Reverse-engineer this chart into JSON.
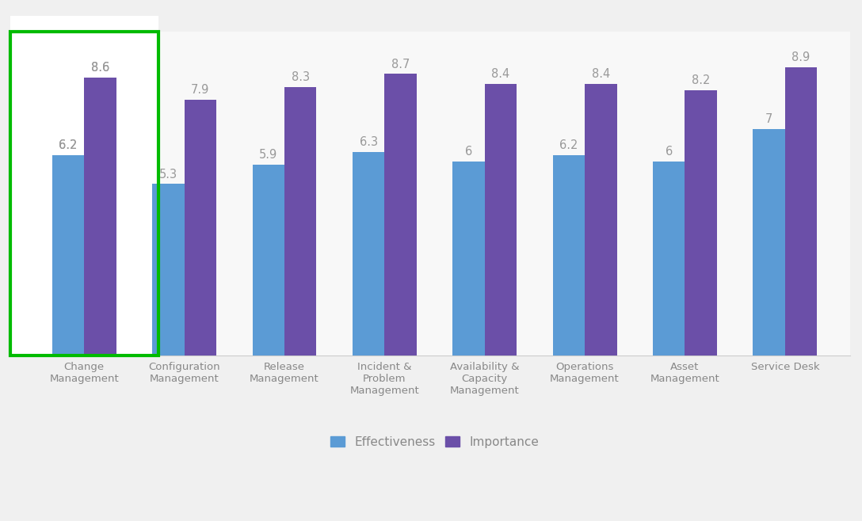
{
  "categories": [
    "Change\nManagement",
    "Configuration\nManagement",
    "Release\nManagement",
    "Incident &\nProblem\nManagement",
    "Availability &\nCapacity\nManagement",
    "Operations\nManagement",
    "Asset\nManagement",
    "Service Desk"
  ],
  "effectiveness": [
    6.2,
    5.3,
    5.9,
    6.3,
    6.0,
    6.2,
    6.0,
    7.0
  ],
  "importance": [
    8.6,
    7.9,
    8.3,
    8.7,
    8.4,
    8.4,
    8.2,
    8.9
  ],
  "effectiveness_color": "#5B9BD5",
  "importance_color": "#6B4FA8",
  "highlighted_index": 0,
  "highlight_color": "#00BB00",
  "background_color": "#F0F0F0",
  "plot_area_color": "#F8F8F8",
  "highlight_bg_color": "#FFFFFF",
  "bar_width": 0.32,
  "ylim": [
    0,
    10
  ],
  "value_label_color": "#999999",
  "value_fontsize": 10.5,
  "legend_fontsize": 11,
  "tick_label_fontsize": 9.5
}
